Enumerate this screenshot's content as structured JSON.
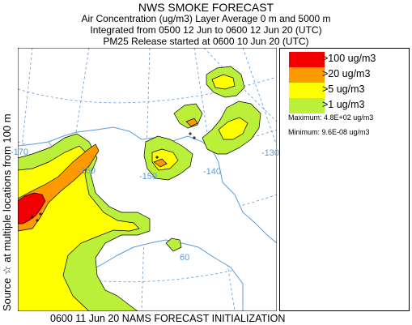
{
  "header": {
    "title": "NWS SMOKE FORECAST",
    "line2": "Air Concentration (ug/m3) Layer Average    0 m and  5000 m",
    "line3": "Integrated from 0500 12 Jun to 0600 12 Jun 20 (UTC)",
    "line4": "PM25 Release started at 0600 10 Jun 20 (UTC)"
  },
  "side_label": "Source ☆  at multiple locations  from   100 m",
  "footer": "0600 11 Jun 20 NAMS FORECAST INITIALIZATION",
  "map": {
    "longitude_labels": [
      "-170",
      "-160",
      "-150",
      "-140",
      "-130"
    ],
    "latitude_labels": [
      "60"
    ],
    "colors": {
      "land": "#ffffff",
      "coast": "#5a9bd5",
      "graticule": "#5a9bd5",
      "outline": "#000000"
    }
  },
  "legend": {
    "items": [
      {
        "label": ">100 ug/m3",
        "color": "#f00000"
      },
      {
        "label": ">20 ug/m3",
        "color": "#ff9900"
      },
      {
        "label": ">5 ug/m3",
        "color": "#ffff00"
      },
      {
        "label": ">1 ug/m3",
        "color": "#bbf03a"
      }
    ],
    "maximum": "Maximum: 4.8E+02 ug/m3",
    "minimum": "Minimum: 9.6E-08 ug/m3"
  }
}
